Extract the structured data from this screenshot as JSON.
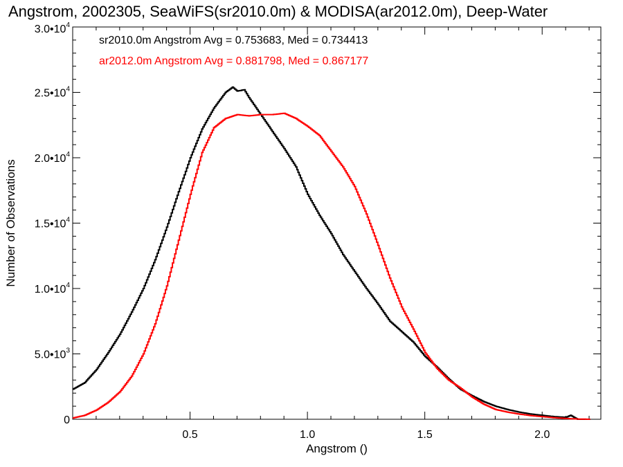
{
  "chart_data": {
    "type": "line",
    "title": "Angstrom, 2002305, SeaWiFS(sr2010.0m) & MODISA(ar2012.0m), Deep-Water",
    "xlabel": "Angstrom ()",
    "ylabel": "Number of Observations",
    "xlim": [
      0.0,
      2.25
    ],
    "ylim": [
      0,
      30000
    ],
    "x_ticks": [
      {
        "value": 0.5,
        "label": "0.5"
      },
      {
        "value": 1.0,
        "label": "1.0"
      },
      {
        "value": 1.5,
        "label": "1.5"
      },
      {
        "value": 2.0,
        "label": "2.0"
      }
    ],
    "y_ticks": [
      {
        "value": 0,
        "mant": "0",
        "exp": ""
      },
      {
        "value": 5000,
        "mant": "5.0•10",
        "exp": "3"
      },
      {
        "value": 10000,
        "mant": "1.0•10",
        "exp": "4"
      },
      {
        "value": 15000,
        "mant": "1.5•10",
        "exp": "4"
      },
      {
        "value": 20000,
        "mant": "2.0•10",
        "exp": "4"
      },
      {
        "value": 25000,
        "mant": "2.5•10",
        "exp": "4"
      },
      {
        "value": 30000,
        "mant": "3.0•10",
        "exp": "4"
      }
    ],
    "grid": false,
    "legend_position": "top-left",
    "series": [
      {
        "name": "sr2010.0m Angstrom Avg = 0.753683, Med = 0.734413",
        "color": "#000000",
        "x": [
          0.0,
          0.05,
          0.1,
          0.15,
          0.2,
          0.25,
          0.3,
          0.35,
          0.4,
          0.45,
          0.5,
          0.55,
          0.6,
          0.65,
          0.68,
          0.7,
          0.73,
          0.75,
          0.8,
          0.85,
          0.9,
          0.95,
          1.0,
          1.05,
          1.1,
          1.15,
          1.2,
          1.25,
          1.3,
          1.35,
          1.4,
          1.45,
          1.5,
          1.55,
          1.6,
          1.65,
          1.7,
          1.75,
          1.8,
          1.85,
          1.9,
          1.95,
          2.0,
          2.05,
          2.1,
          2.12,
          2.14,
          2.15,
          2.2
        ],
        "y": [
          2300,
          2800,
          3800,
          5100,
          6500,
          8200,
          10000,
          12200,
          14700,
          17400,
          20000,
          22200,
          23800,
          25000,
          25400,
          25100,
          25200,
          24600,
          23300,
          22000,
          20700,
          19300,
          17200,
          15600,
          14200,
          12600,
          11300,
          10000,
          8800,
          7500,
          6700,
          5900,
          4800,
          4000,
          3100,
          2300,
          1800,
          1350,
          1000,
          750,
          550,
          400,
          300,
          200,
          150,
          300,
          100,
          0,
          0
        ]
      },
      {
        "name": "ar2012.0m Angstrom Avg = 0.881798, Med = 0.867177",
        "color": "#ff0000",
        "x": [
          0.0,
          0.05,
          0.1,
          0.15,
          0.2,
          0.25,
          0.3,
          0.35,
          0.4,
          0.45,
          0.5,
          0.55,
          0.6,
          0.65,
          0.7,
          0.75,
          0.8,
          0.85,
          0.9,
          0.95,
          1.0,
          1.05,
          1.1,
          1.15,
          1.2,
          1.25,
          1.3,
          1.35,
          1.4,
          1.45,
          1.5,
          1.55,
          1.6,
          1.65,
          1.7,
          1.75,
          1.8,
          1.85,
          1.9,
          1.95,
          2.0,
          2.05,
          2.1,
          2.15,
          2.2
        ],
        "y": [
          100,
          300,
          700,
          1300,
          2100,
          3300,
          5000,
          7300,
          10200,
          13700,
          17200,
          20400,
          22300,
          23000,
          23300,
          23200,
          23300,
          23300,
          23400,
          23000,
          22400,
          21700,
          20500,
          19300,
          17800,
          15700,
          13300,
          10800,
          8600,
          6900,
          5100,
          3900,
          3000,
          2400,
          1700,
          1150,
          750,
          550,
          400,
          280,
          200,
          120,
          60,
          20,
          0
        ]
      }
    ]
  }
}
